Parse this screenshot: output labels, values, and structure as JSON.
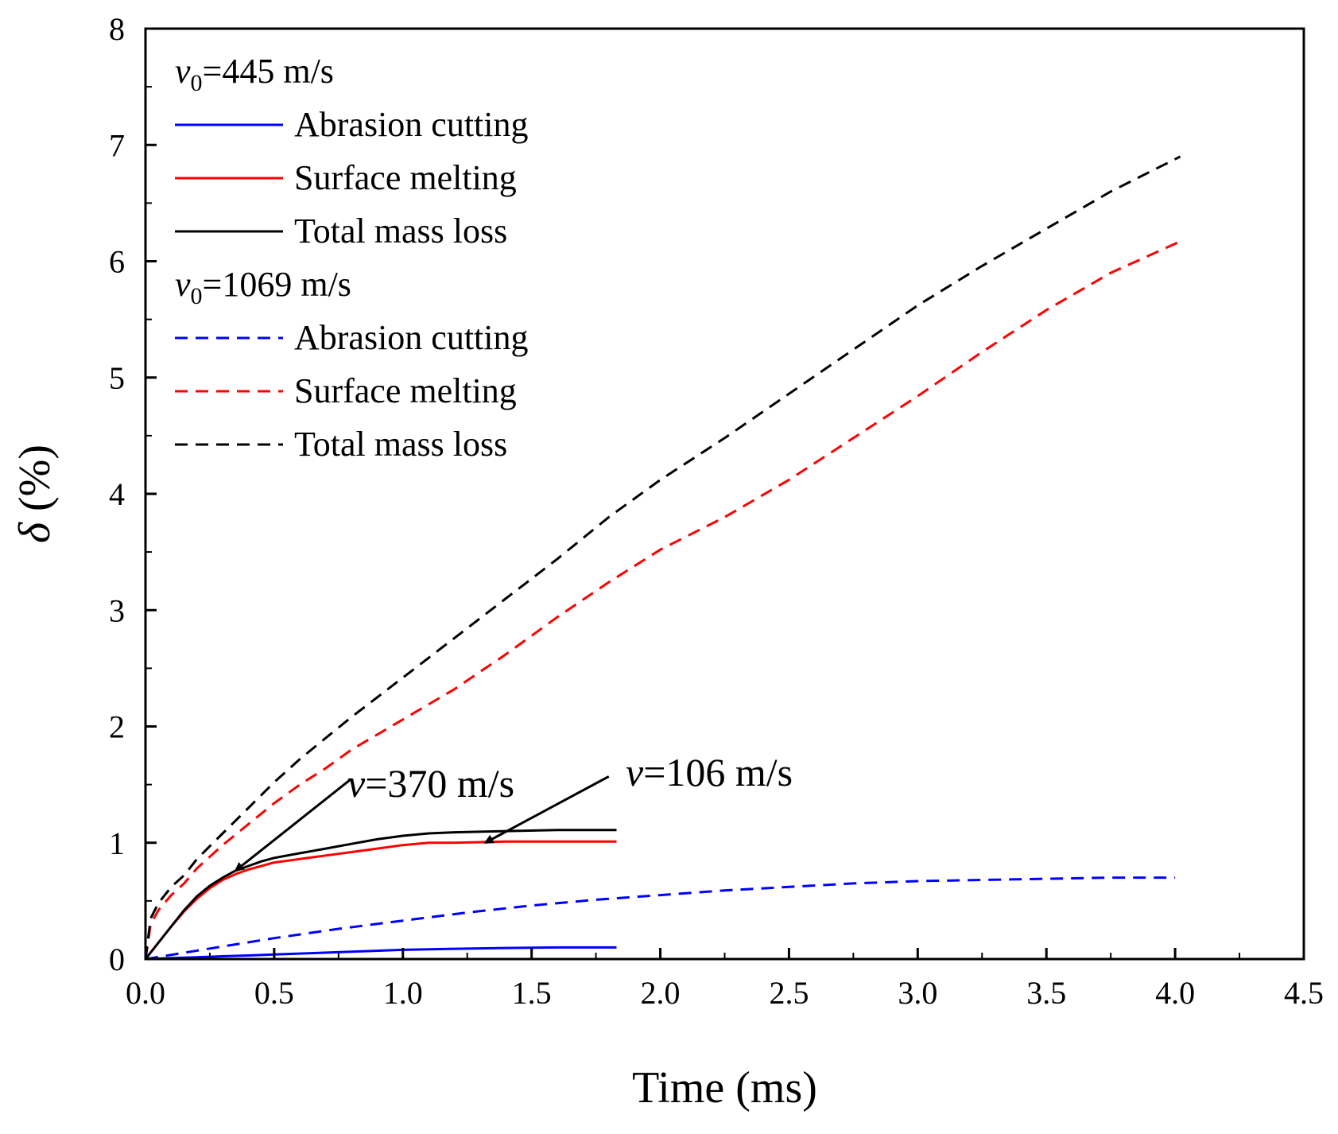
{
  "chart_data": {
    "type": "line",
    "title": "",
    "xlabel": "Time (ms)",
    "ylabel_symbol": "δ",
    "ylabel_unit": " (%)",
    "xlim": [
      0,
      4.5
    ],
    "ylim": [
      0,
      8
    ],
    "x_major_ticks": [
      0.0,
      0.5,
      1.0,
      1.5,
      2.0,
      2.5,
      3.0,
      3.5,
      4.0,
      4.5
    ],
    "x_tick_labels": [
      "0.0",
      "0.5",
      "1.0",
      "1.5",
      "2.0",
      "2.5",
      "3.0",
      "3.5",
      "4.0",
      "4.5"
    ],
    "y_major_ticks": [
      0,
      1,
      2,
      3,
      4,
      5,
      6,
      7,
      8
    ],
    "y_tick_labels": [
      "0",
      "1",
      "2",
      "3",
      "4",
      "5",
      "6",
      "7",
      "8"
    ],
    "grid": false,
    "legend": {
      "position": "top-left",
      "groups": [
        {
          "title_symbol": "v",
          "title_sub": "0",
          "title_rest": "=445 m/s",
          "entries": [
            "Abrasion cutting",
            "Surface melting",
            "Total mass loss"
          ]
        },
        {
          "title_symbol": "v",
          "title_sub": "0",
          "title_rest": "=1069 m/s",
          "entries": [
            "Abrasion cutting",
            "Surface melting",
            "Total mass loss"
          ]
        }
      ]
    },
    "series": [
      {
        "name": "Abrasion cutting (v0=445 m/s)",
        "color": "#0000ff",
        "dash": "solid",
        "x": [
          0,
          0.1,
          0.2,
          0.3,
          0.4,
          0.5,
          0.6,
          0.8,
          1.0,
          1.2,
          1.4,
          1.6,
          1.83
        ],
        "y": [
          0,
          0.008,
          0.016,
          0.024,
          0.031,
          0.039,
          0.047,
          0.063,
          0.079,
          0.088,
          0.095,
          0.1,
          0.1
        ]
      },
      {
        "name": "Surface melting (v0=445 m/s)",
        "color": "#ff0000",
        "dash": "solid",
        "x": [
          0,
          0.05,
          0.1,
          0.15,
          0.2,
          0.25,
          0.3,
          0.35,
          0.4,
          0.45,
          0.5,
          0.6,
          0.7,
          0.8,
          0.9,
          1.0,
          1.1,
          1.2,
          1.4,
          1.6,
          1.83
        ],
        "y": [
          0,
          0.14,
          0.28,
          0.41,
          0.52,
          0.61,
          0.68,
          0.73,
          0.77,
          0.8,
          0.83,
          0.86,
          0.89,
          0.92,
          0.95,
          0.98,
          1.0,
          1.0,
          1.01,
          1.01,
          1.01
        ]
      },
      {
        "name": "Total mass loss (v0=445 m/s)",
        "color": "#000000",
        "dash": "solid",
        "x": [
          0,
          0.05,
          0.1,
          0.15,
          0.2,
          0.25,
          0.3,
          0.35,
          0.4,
          0.45,
          0.5,
          0.6,
          0.7,
          0.8,
          0.9,
          1.0,
          1.1,
          1.2,
          1.4,
          1.6,
          1.83
        ],
        "y": [
          0,
          0.14,
          0.28,
          0.42,
          0.54,
          0.63,
          0.7,
          0.76,
          0.8,
          0.84,
          0.87,
          0.91,
          0.95,
          0.99,
          1.03,
          1.06,
          1.08,
          1.09,
          1.1,
          1.11,
          1.11
        ]
      },
      {
        "name": "Abrasion cutting (v0=1069 m/s)",
        "color": "#0000ff",
        "dash": "dashed",
        "x": [
          0,
          0.25,
          0.5,
          0.75,
          1.0,
          1.25,
          1.5,
          1.75,
          2.0,
          2.25,
          2.5,
          2.75,
          3.0,
          3.25,
          3.5,
          3.75,
          4.0
        ],
        "y": [
          0,
          0.09,
          0.18,
          0.26,
          0.33,
          0.4,
          0.46,
          0.51,
          0.55,
          0.59,
          0.62,
          0.65,
          0.67,
          0.68,
          0.69,
          0.7,
          0.7
        ]
      },
      {
        "name": "Surface melting (v0=1069 m/s)",
        "color": "#ff0000",
        "dash": "dashed",
        "x": [
          0,
          0.02,
          0.05,
          0.1,
          0.15,
          0.2,
          0.25,
          0.3,
          0.4,
          0.5,
          0.6,
          0.7,
          0.8,
          1.0,
          1.2,
          1.4,
          1.6,
          1.8,
          2.0,
          2.25,
          2.5,
          2.75,
          3.0,
          3.25,
          3.5,
          3.75,
          4.02
        ],
        "y": [
          0,
          0.3,
          0.42,
          0.55,
          0.65,
          0.78,
          0.88,
          0.98,
          1.16,
          1.34,
          1.5,
          1.64,
          1.8,
          2.06,
          2.32,
          2.62,
          2.94,
          3.24,
          3.52,
          3.8,
          4.12,
          4.48,
          4.84,
          5.22,
          5.58,
          5.9,
          6.17
        ]
      },
      {
        "name": "Total mass loss (v0=1069 m/s)",
        "color": "#000000",
        "dash": "dashed",
        "x": [
          0,
          0.02,
          0.05,
          0.1,
          0.15,
          0.2,
          0.25,
          0.3,
          0.4,
          0.5,
          0.6,
          0.7,
          0.8,
          1.0,
          1.2,
          1.4,
          1.6,
          1.8,
          2.0,
          2.25,
          2.5,
          2.75,
          3.0,
          3.25,
          3.5,
          3.75,
          4.02
        ],
        "y": [
          0,
          0.35,
          0.48,
          0.62,
          0.72,
          0.86,
          0.97,
          1.08,
          1.3,
          1.52,
          1.72,
          1.9,
          2.08,
          2.42,
          2.76,
          3.1,
          3.44,
          3.8,
          4.12,
          4.48,
          4.86,
          5.24,
          5.62,
          5.96,
          6.28,
          6.6,
          6.9
        ]
      }
    ],
    "annotations": [
      {
        "symbol": "v",
        "rest": "=370 m/s",
        "arrow_from": [
          0.8,
          1.55
        ],
        "arrow_to": [
          0.35,
          0.76
        ]
      },
      {
        "symbol": "v",
        "rest": "=106 m/s",
        "arrow_from": [
          1.8,
          1.57
        ],
        "arrow_to": [
          1.32,
          1.0
        ]
      }
    ]
  }
}
